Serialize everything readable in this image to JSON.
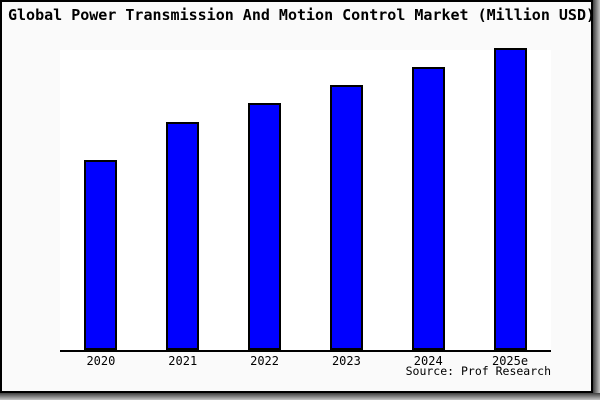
{
  "title": "Global Power Transmission And Motion Control Market (Million USD)",
  "source": "Source: Prof Research",
  "colors": {
    "bar_fill": "#0000ff",
    "bar_border": "#000000",
    "plot_background": "#ffffff",
    "card_background": "#fafafa",
    "card_border": "#000000",
    "axis": "#000000"
  },
  "chart_data": {
    "type": "bar",
    "title": "Global Power Transmission And Motion Control Market (Million USD)",
    "categories": [
      "2020",
      "2021",
      "2022",
      "2023",
      "2024",
      "2025e"
    ],
    "values": [
      62.7,
      75.4,
      81.7,
      87.7,
      93.7,
      100
    ],
    "units": "relative index, 2025e = 100 (chart shows no y-axis scale)",
    "xlabel": "",
    "ylabel": "",
    "ylim": [
      0,
      100
    ],
    "grid": false,
    "legend": false,
    "y_axis_labels_visible": false,
    "annotation": "Source: Prof Research"
  }
}
